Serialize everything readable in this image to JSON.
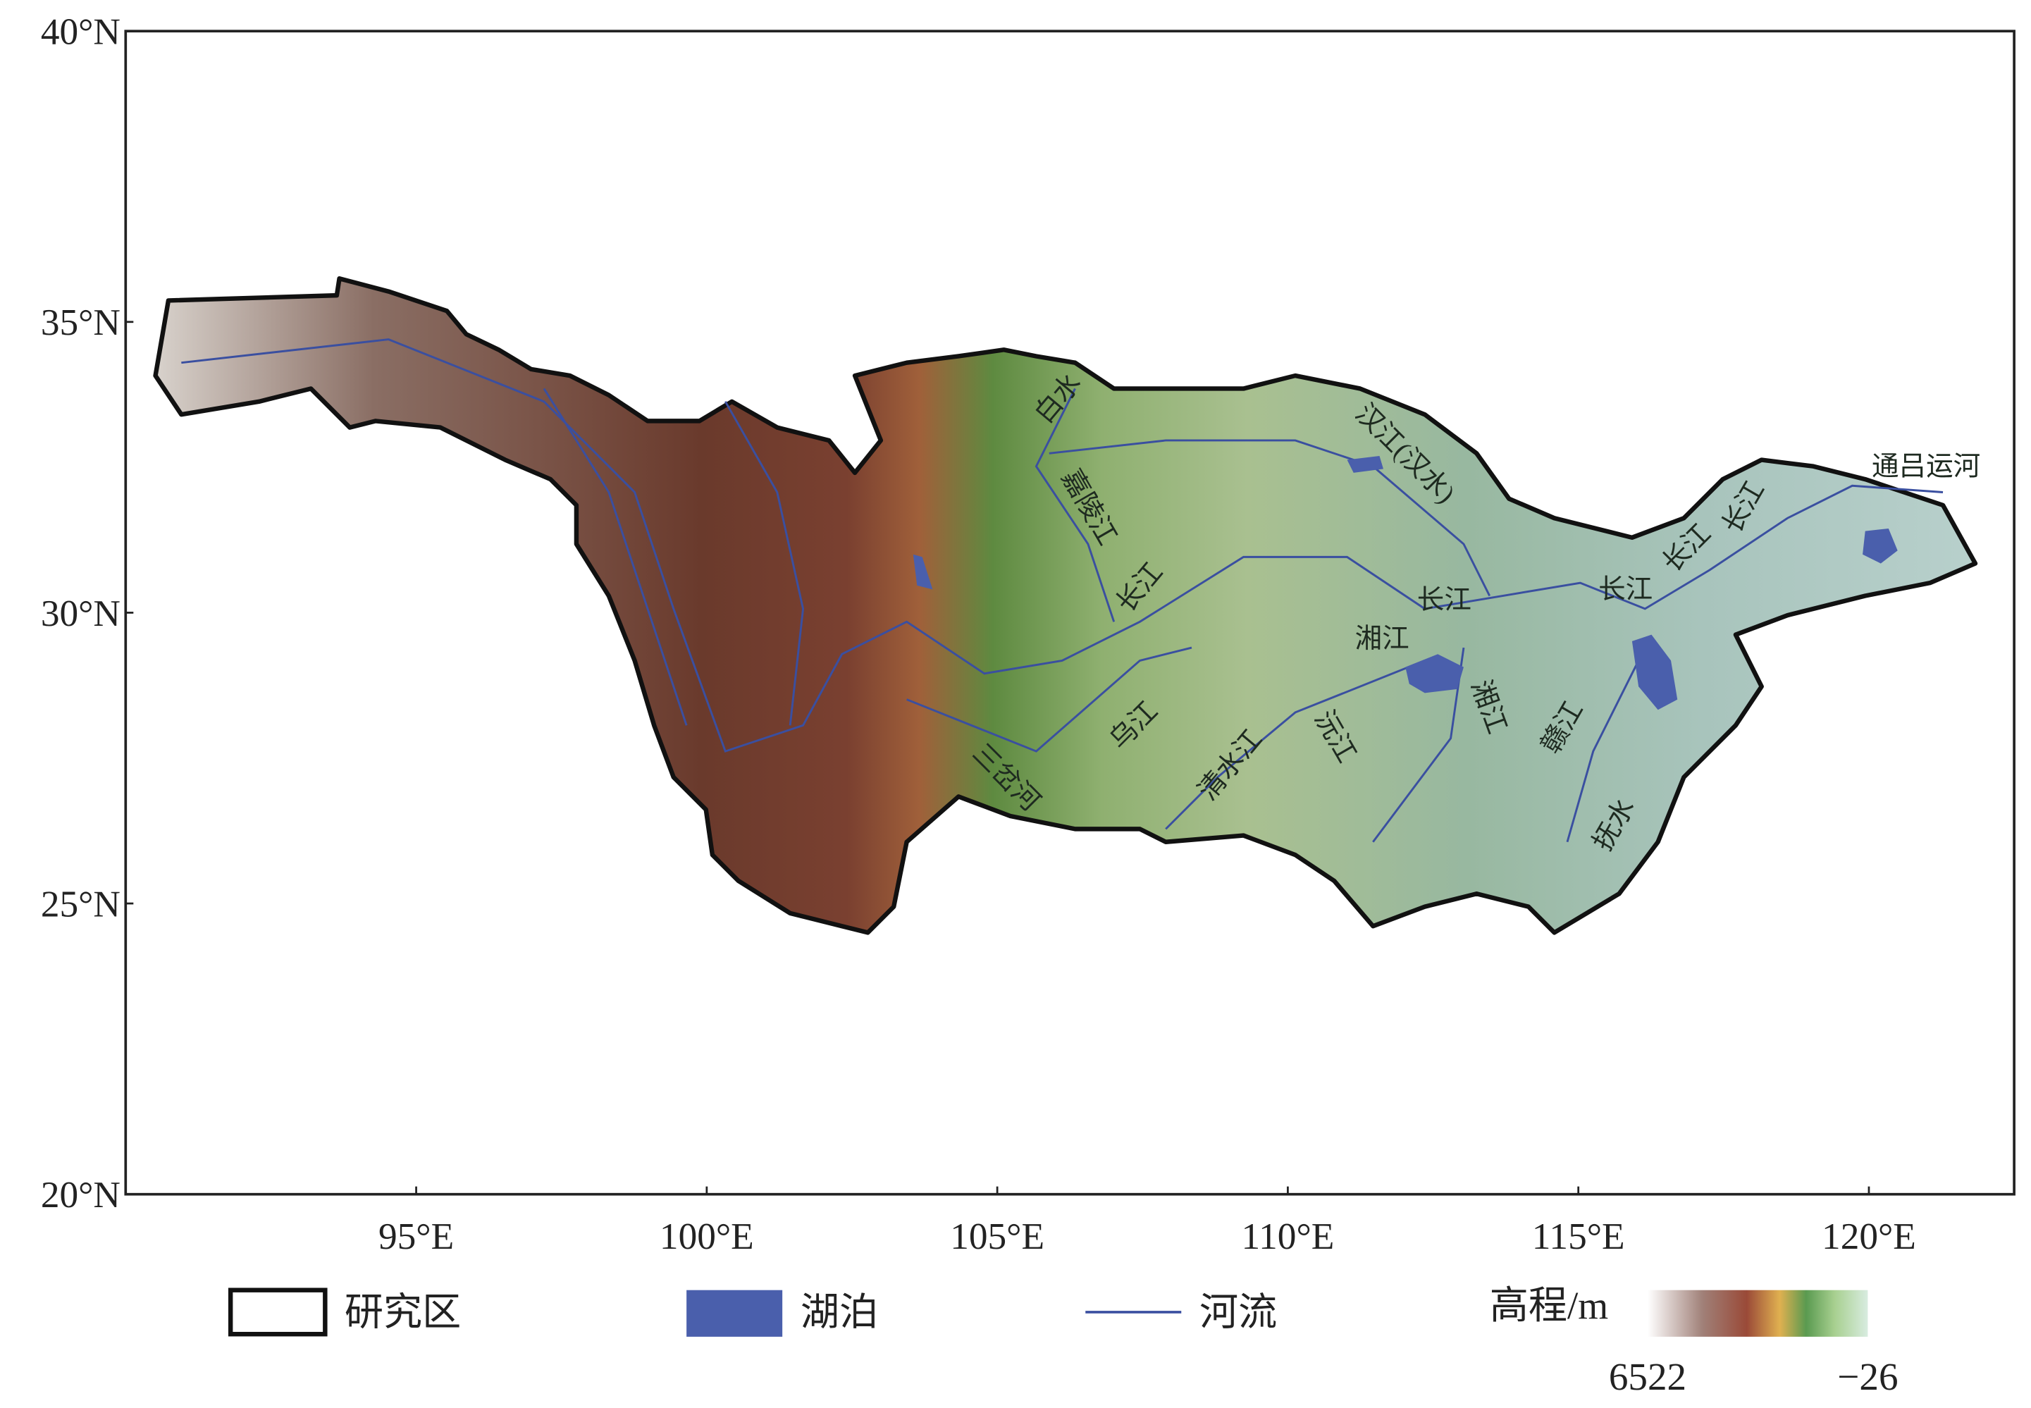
{
  "map": {
    "xlim": [
      90,
      122.5
    ],
    "ylim": [
      20,
      40
    ],
    "xticks": [
      {
        "value": 95,
        "label": "95°E"
      },
      {
        "value": 100,
        "label": "100°E"
      },
      {
        "value": 105,
        "label": "105°E"
      },
      {
        "value": 110,
        "label": "110°E"
      },
      {
        "value": 115,
        "label": "115°E"
      },
      {
        "value": 120,
        "label": "120°E"
      }
    ],
    "yticks": [
      {
        "value": 20,
        "label": "20°N"
      },
      {
        "value": 25,
        "label": "25°N"
      },
      {
        "value": 30,
        "label": "30°N"
      },
      {
        "value": 35,
        "label": "35°N"
      },
      {
        "value": 40,
        "label": "40°N"
      }
    ],
    "river_labels": [
      "汉江(汉水)",
      "通吕运河",
      "长江",
      "长江",
      "长江",
      "长江",
      "长江",
      "嘉陵江",
      "白水",
      "湘江",
      "湘江",
      "乌江",
      "清水江",
      "沅江",
      "赣江",
      "抚水",
      "三岔河"
    ],
    "legend": {
      "study_area": "研究区",
      "lake": "湖泊",
      "river": "河流",
      "elevation_title": "高程/m",
      "elevation_max": 6522,
      "elevation_min": {
        "value": -26,
        "label": "−26"
      }
    }
  }
}
